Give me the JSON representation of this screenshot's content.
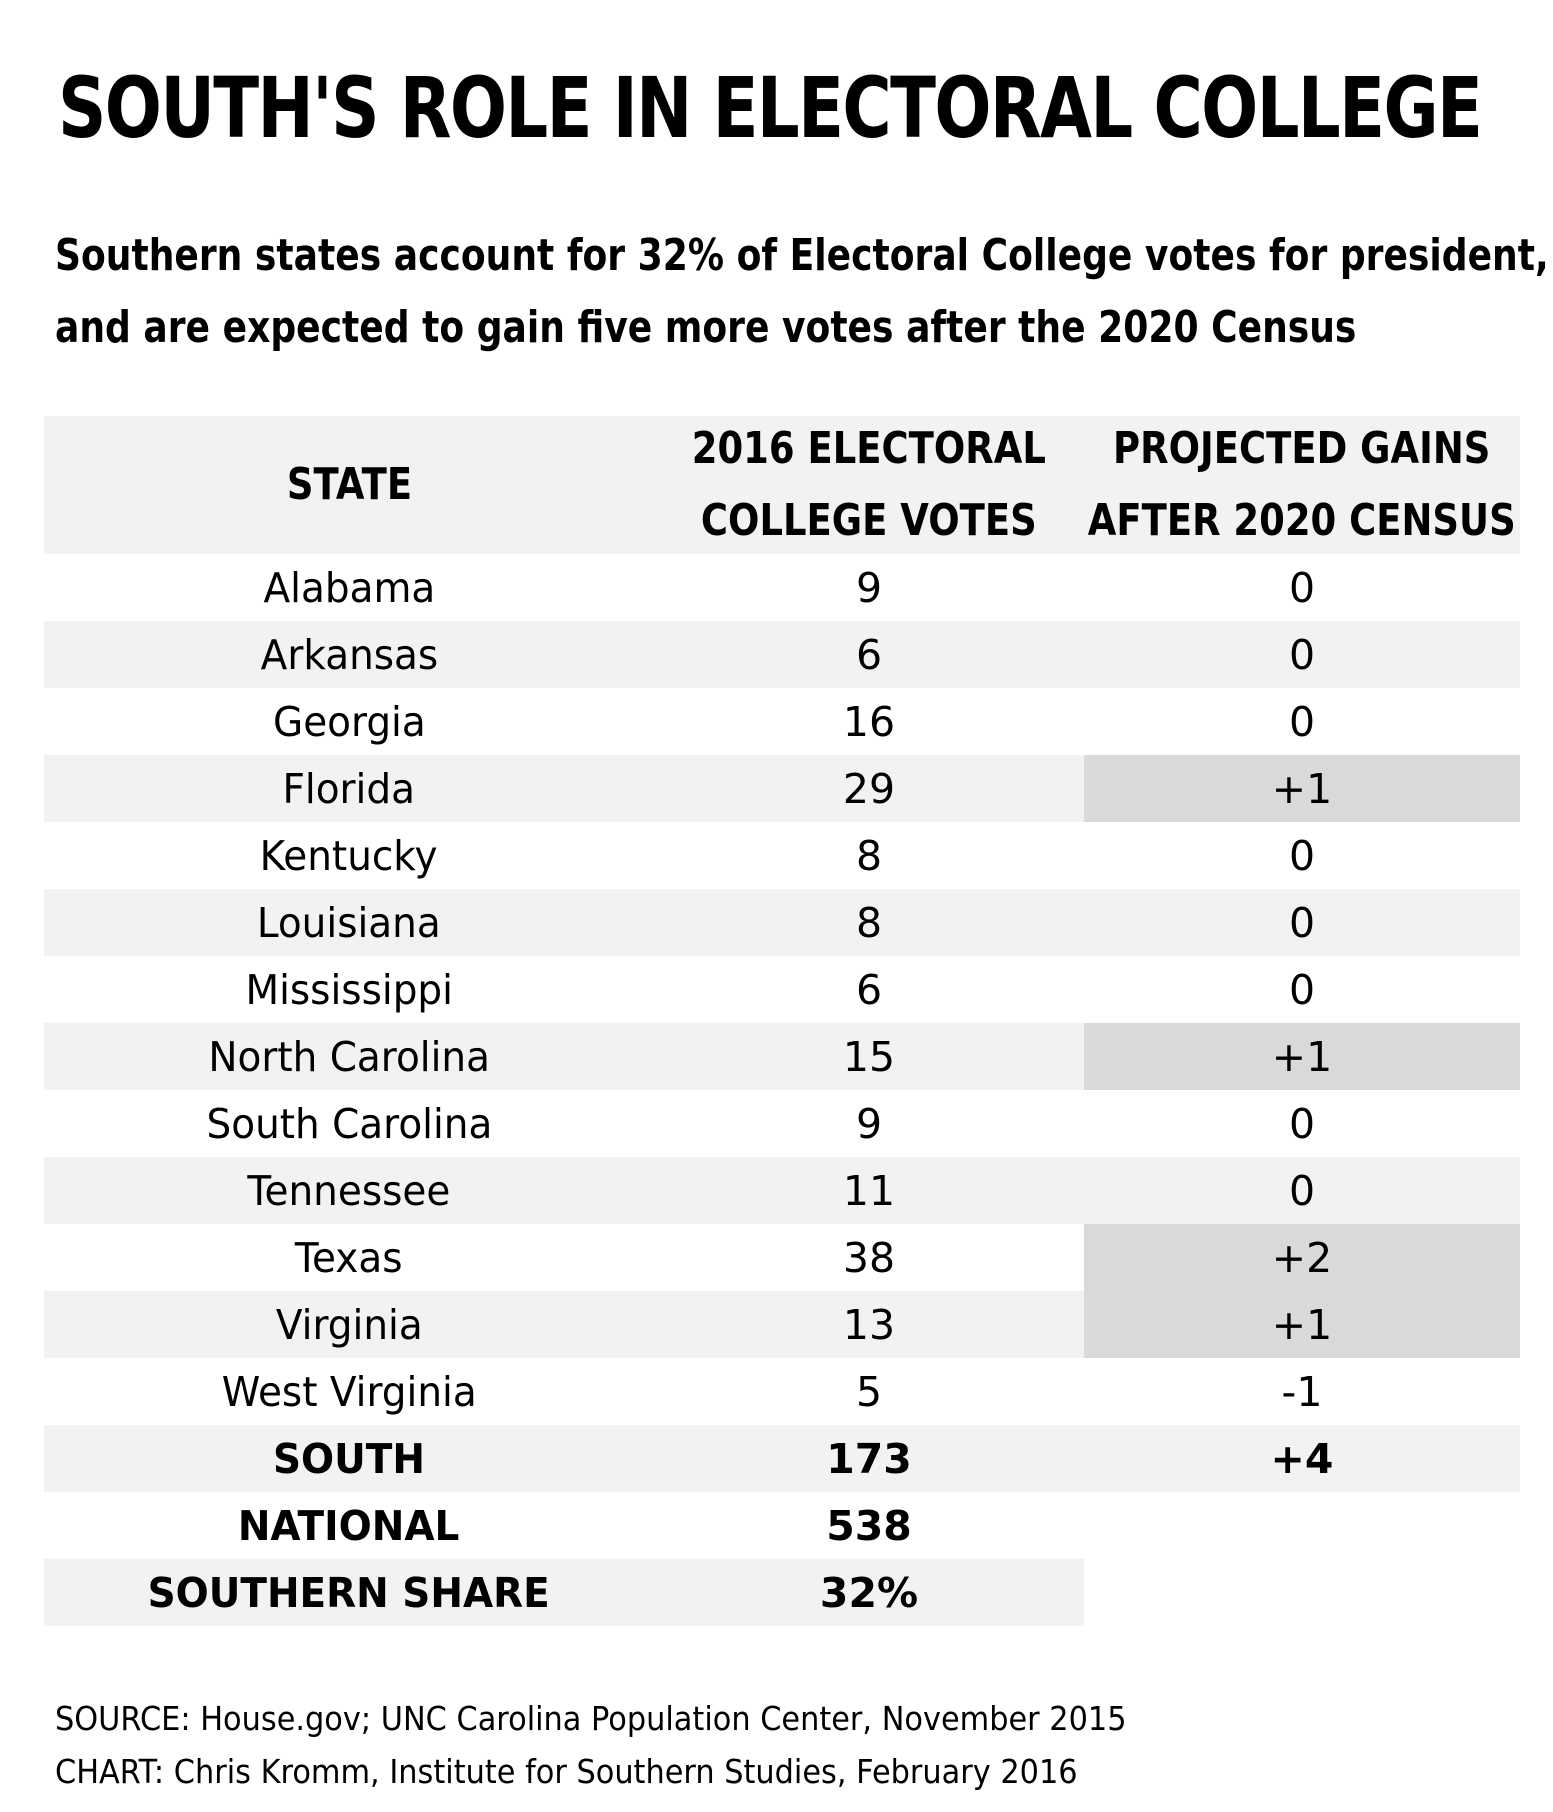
{
  "chart_data": {
    "type": "table",
    "title": "SOUTH'S ROLE IN ELECTORAL COLLEGE",
    "subtitle_lines": [
      "Southern states account for 32% of Electoral College votes for president,",
      "and are expected to gain five more votes after the 2020 Census"
    ],
    "columns": [
      {
        "lines": [
          "STATE"
        ]
      },
      {
        "lines": [
          "2016 ELECTORAL",
          "COLLEGE VOTES"
        ]
      },
      {
        "lines": [
          "PROJECTED GAINS",
          "AFTER 2020 CENSUS"
        ]
      }
    ],
    "rows": [
      {
        "state": "Alabama",
        "votes": "9",
        "gain": "0",
        "highlight": false
      },
      {
        "state": "Arkansas",
        "votes": "6",
        "gain": "0",
        "highlight": false
      },
      {
        "state": "Georgia",
        "votes": "16",
        "gain": "0",
        "highlight": false
      },
      {
        "state": "Florida",
        "votes": "29",
        "gain": "+1",
        "highlight": true
      },
      {
        "state": "Kentucky",
        "votes": "8",
        "gain": "0",
        "highlight": false
      },
      {
        "state": "Louisiana",
        "votes": "8",
        "gain": "0",
        "highlight": false
      },
      {
        "state": "Mississippi",
        "votes": "6",
        "gain": "0",
        "highlight": false
      },
      {
        "state": "North Carolina",
        "votes": "15",
        "gain": "+1",
        "highlight": true
      },
      {
        "state": "South Carolina",
        "votes": "9",
        "gain": "0",
        "highlight": false
      },
      {
        "state": "Tennessee",
        "votes": "11",
        "gain": "0",
        "highlight": false
      },
      {
        "state": "Texas",
        "votes": "38",
        "gain": "+2",
        "highlight": true
      },
      {
        "state": "Virginia",
        "votes": "13",
        "gain": "+1",
        "highlight": true
      },
      {
        "state": "West Virginia",
        "votes": "5",
        "gain": "-1",
        "highlight": false
      }
    ],
    "totals": [
      {
        "label": "SOUTH",
        "votes": "173",
        "gain": "+4"
      },
      {
        "label": "NATIONAL",
        "votes": "538",
        "gain": ""
      },
      {
        "label": "SOUTHERN SHARE",
        "votes": "32%",
        "gain": ""
      }
    ],
    "colors": {
      "stripe": "#f2f2f2",
      "highlight": "#d9d9d9",
      "text": "#000000",
      "background": "#ffffff"
    }
  },
  "footer": {
    "source": "SOURCE: House.gov; UNC Carolina Population Center, November 2015",
    "chart": "CHART: Chris Kromm, Institute for Southern Studies, February 2016"
  }
}
